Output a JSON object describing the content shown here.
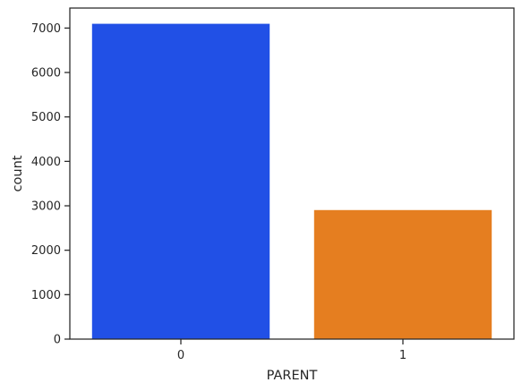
{
  "chart_data": {
    "type": "bar",
    "categories": [
      "0",
      "1"
    ],
    "values": [
      7096,
      2904
    ],
    "colors": [
      "#2150e6",
      "#e57e20"
    ],
    "xlabel": "PARENT",
    "ylabel": "count",
    "ylim": [
      0,
      7450
    ],
    "yticks": [
      0,
      1000,
      2000,
      3000,
      4000,
      5000,
      6000,
      7000
    ],
    "grid": false,
    "legend": "none"
  }
}
